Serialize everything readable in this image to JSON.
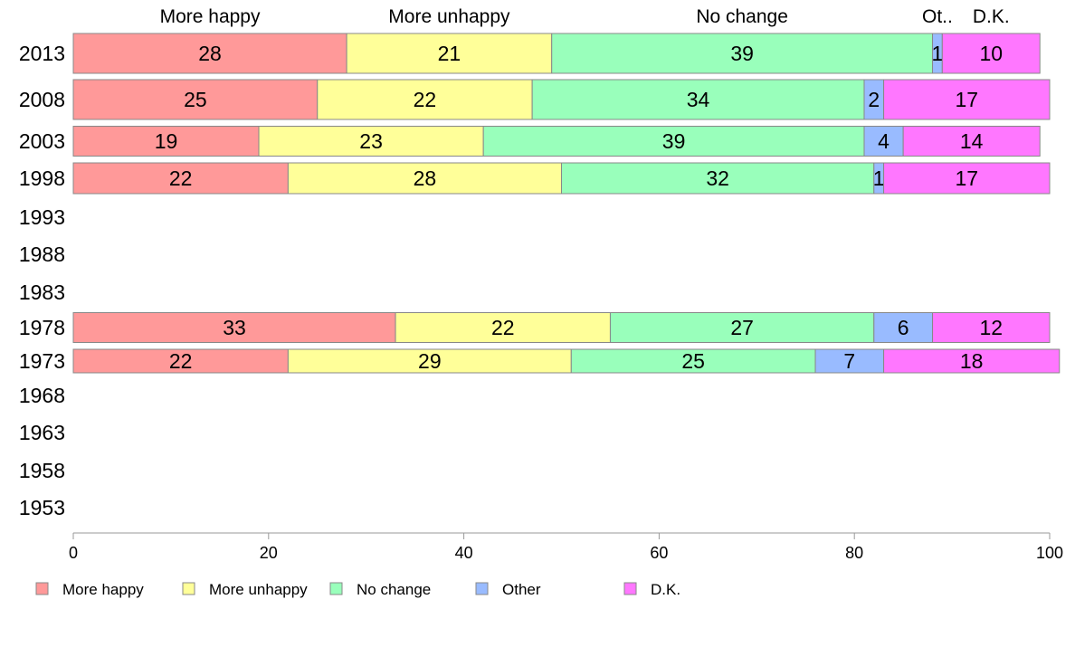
{
  "chart_data": {
    "type": "bar",
    "orientation": "horizontal",
    "stacked": true,
    "categories": [
      "2013",
      "2008",
      "2003",
      "1998",
      "1993",
      "1988",
      "1983",
      "1978",
      "1973",
      "1968",
      "1963",
      "1958",
      "1953"
    ],
    "column_headers": [
      "More happy",
      "More unhappy",
      "No change",
      "Ot..",
      "D.K."
    ],
    "series": [
      {
        "name": "More happy",
        "color": "#ff9999",
        "values": [
          28,
          25,
          19,
          22,
          null,
          null,
          null,
          33,
          22,
          null,
          null,
          null,
          null
        ]
      },
      {
        "name": "More unhappy",
        "color": "#ffff99",
        "values": [
          21,
          22,
          23,
          28,
          null,
          null,
          null,
          22,
          29,
          null,
          null,
          null,
          null
        ]
      },
      {
        "name": "No change",
        "color": "#99ffbb",
        "values": [
          39,
          34,
          39,
          32,
          null,
          null,
          null,
          27,
          25,
          null,
          null,
          null,
          null
        ]
      },
      {
        "name": "Other",
        "color": "#99bbff",
        "values": [
          1,
          2,
          4,
          1,
          null,
          null,
          null,
          6,
          7,
          null,
          null,
          null,
          null
        ]
      },
      {
        "name": "D.K.",
        "color": "#ff77ff",
        "values": [
          10,
          17,
          14,
          17,
          null,
          null,
          null,
          12,
          18,
          null,
          null,
          null,
          null
        ]
      }
    ],
    "xlim": [
      0,
      100
    ],
    "xticks": [
      "0",
      "20",
      "40",
      "60",
      "80",
      "100"
    ],
    "grid": false,
    "legend_position": "bottom"
  }
}
